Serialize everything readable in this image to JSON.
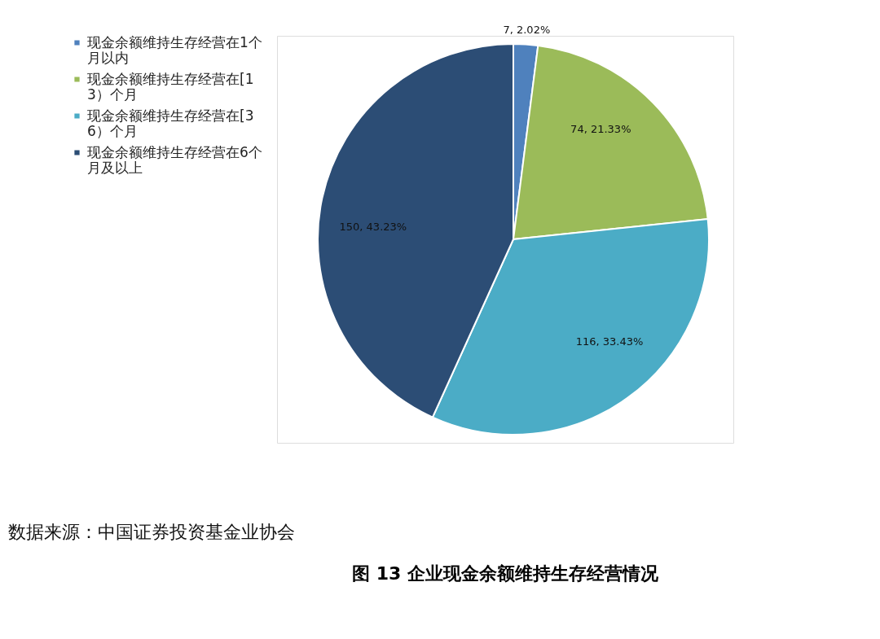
{
  "chart_data": {
    "type": "pie",
    "title": "图 13 企业现金余额维持生存经营情况",
    "categories": [
      "现金余额维持生存经营在1个月以内",
      "现金余额维持生存经营在[1 3）个月",
      "现金余额维持生存经营在[3 6）个月",
      "现金余额维持生存经营在6个月及以上"
    ],
    "values": [
      7,
      74,
      116,
      150
    ],
    "colors": [
      "#4f81bd",
      "#9bbb59",
      "#4bacc6",
      "#2c4d75"
    ],
    "value_labels": [
      "7, 2.02%",
      "74, 21.33%",
      "116, 33.43%",
      "150, 43.23%"
    ],
    "legend": "left",
    "annotations": [
      "数据来源：中国证券投资基金业协会"
    ]
  }
}
